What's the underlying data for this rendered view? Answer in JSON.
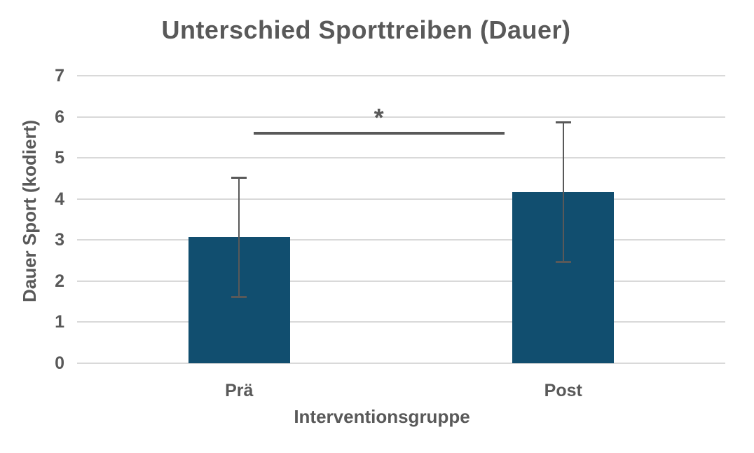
{
  "chart": {
    "title": "Unterschied Sporttreiben (Dauer)",
    "ylabel": "Dauer Sport (kodiert)",
    "xlabel": "Interventionsgruppe"
  },
  "chart_data": {
    "type": "bar",
    "title": "Unterschied Sporttreiben (Dauer)",
    "xlabel": "Interventionsgruppe",
    "ylabel": "Dauer Sport (kodiert)",
    "categories": [
      "Prä",
      "Post"
    ],
    "values": [
      3.08,
      4.17
    ],
    "error_bars": [
      1.45,
      1.7
    ],
    "ylim": [
      0,
      7
    ],
    "ytick_step": 1,
    "yticks": [
      0,
      1,
      2,
      3,
      4,
      5,
      6,
      7
    ],
    "grid": true,
    "legend": "none",
    "significance": {
      "label": "*",
      "y": 5.6,
      "x_start_frac": 0.272,
      "x_end_frac": 0.659
    },
    "colors": {
      "bar": "#114E6F",
      "error_bar": "#595959",
      "significance_line": "#595959",
      "grid_line": "#D9D9D9",
      "text": "#595959",
      "background": "#FFFFFF"
    }
  }
}
